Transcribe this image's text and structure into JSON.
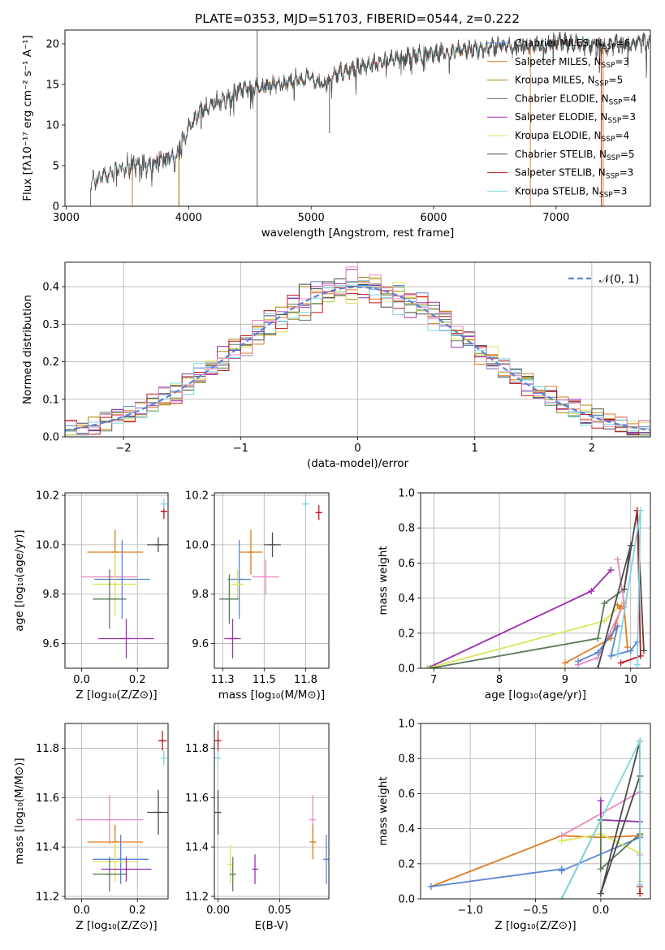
{
  "title": "PLATE=0353, MJD=51703, FIBERID=0544, z=0.222",
  "colors": {
    "chab_miles": "#5b84d6",
    "salp_miles": "#e07a1f",
    "krou_miles": "#a8860c",
    "chab_elodie": "#5a7d58",
    "salp_elodie": "#9b2fae",
    "krou_elodie": "#d9e65c",
    "chab_stelib": "#4a4a4a",
    "salp_stelib": "#c01818",
    "krou_stelib": "#7fd6e0",
    "pink": "#e68ac2",
    "gauss": "#5b84d6"
  },
  "legend_models": [
    {
      "key": "chab_miles",
      "label": "Chabrier MILES, N",
      "sub": "SSP",
      "val": "=6"
    },
    {
      "key": "salp_miles",
      "label": "Salpeter MILES, N",
      "sub": "SSP",
      "val": "=3"
    },
    {
      "key": "krou_miles",
      "label": "Kroupa MILES, N",
      "sub": "SSP",
      "val": "=5"
    },
    {
      "key": "chab_elodie",
      "label": "Chabrier ELODIE, N",
      "sub": "SSP",
      "val": "=4"
    },
    {
      "key": "salp_elodie",
      "label": "Salpeter ELODIE, N",
      "sub": "SSP",
      "val": "=3"
    },
    {
      "key": "krou_elodie",
      "label": "Kroupa ELODIE, N",
      "sub": "SSP",
      "val": "=4"
    },
    {
      "key": "chab_stelib",
      "label": "Chabrier STELIB, N",
      "sub": "SSP",
      "val": "=5"
    },
    {
      "key": "salp_stelib",
      "label": "Salpeter STELIB, N",
      "sub": "SSP",
      "val": "=3"
    },
    {
      "key": "krou_stelib",
      "label": "Kroupa STELIB, N",
      "sub": "SSP",
      "val": "=3"
    }
  ],
  "chart_data": [
    {
      "id": "spectrum",
      "type": "line",
      "xlabel": "wavelength [Angstrom, rest frame]",
      "ylabel": "Flux [fλ10⁻¹⁷ erg cm⁻² s⁻¹ A⁻¹]",
      "xlim": [
        2990,
        7770
      ],
      "ylim": [
        0,
        21.7
      ],
      "xticks": [
        3000,
        4000,
        5000,
        6000,
        7000
      ],
      "yticks": [
        0,
        5,
        10,
        15,
        20
      ],
      "continuum": {
        "x": [
          3200,
          3300,
          3400,
          3500,
          3600,
          3700,
          3800,
          3900,
          4000,
          4100,
          4200,
          4300,
          4400,
          4500,
          4600,
          4700,
          4800,
          4900,
          5000,
          5100,
          5200,
          5300,
          5400,
          5500,
          5600,
          5700,
          5800,
          5900,
          6000,
          6100,
          6200,
          6300,
          6400,
          6500,
          6600,
          6700,
          6800,
          6900,
          7000,
          7100,
          7200,
          7300,
          7400,
          7500,
          7600,
          7700,
          7770
        ],
        "y": [
          3.0,
          3.7,
          4.3,
          4.8,
          5.0,
          5.5,
          5.7,
          6.3,
          9.5,
          11.8,
          12.8,
          13.0,
          14.2,
          14.8,
          14.8,
          14.9,
          15.3,
          15.8,
          15.8,
          15.0,
          16.2,
          16.8,
          17.2,
          17.6,
          17.9,
          18.2,
          18.4,
          18.7,
          18.8,
          19.0,
          19.2,
          19.3,
          19.3,
          19.6,
          19.6,
          19.5,
          19.8,
          19.9,
          20.2,
          20.2,
          19.8,
          19.9,
          19.5,
          20.0,
          20.0,
          20.2,
          19.8
        ]
      },
      "model_starts": {
        "chab_miles": 3540,
        "salp_miles": 3540,
        "krou_miles": 3920,
        "chab_elodie": 3920,
        "salp_elodie": 3920,
        "krou_elodie": 3920,
        "chab_stelib": 3200,
        "salp_stelib": 3200,
        "krou_stelib": 3200
      },
      "model_ends": {
        "salp_miles": 6780,
        "krou_miles": 6780,
        "chab_miles": 7770,
        "salp_stelib": 7380,
        "krou_elodie": 7770
      }
    },
    {
      "id": "residuals",
      "type": "area",
      "xlabel": "(data-model)/error",
      "ylabel": "Normed distribution",
      "xlim": [
        -2.5,
        2.5
      ],
      "ylim": [
        0,
        0.465
      ],
      "xticks": [
        -2,
        -1,
        0,
        1,
        2
      ],
      "yticks": [
        0.0,
        0.1,
        0.2,
        0.3,
        0.4
      ],
      "bin_width": 0.1,
      "legend": "𝒩(0, 1)"
    },
    {
      "id": "age_vs_Z",
      "type": "scatter",
      "xlabel": "Z [log₁₀(Z/Z⊙)]",
      "ylabel": "age  [log₁₀(age/yr)]",
      "xlim": [
        -0.06,
        0.31
      ],
      "ylim": [
        9.5,
        10.21
      ],
      "xticks": [
        0.0,
        0.2
      ],
      "yticks": [
        9.6,
        9.8,
        10.0,
        10.2
      ],
      "points": [
        {
          "c": "pink",
          "x": 0.1,
          "y": 9.87,
          "xe": 0.1,
          "ye": 0.0
        },
        {
          "c": "chab_miles",
          "x": 0.145,
          "y": 9.86,
          "xe": 0.1,
          "ye": 0.16
        },
        {
          "c": "salp_miles",
          "x": 0.12,
          "y": 9.97,
          "xe": 0.1,
          "ye": 0.09
        },
        {
          "c": "krou_elodie",
          "x": 0.12,
          "y": 9.84,
          "xe": 0.08,
          "ye": 0.13
        },
        {
          "c": "chab_elodie",
          "x": 0.1,
          "y": 9.78,
          "xe": 0.06,
          "ye": 0.12
        },
        {
          "c": "salp_elodie",
          "x": 0.16,
          "y": 9.62,
          "xe": 0.1,
          "ye": 0.08
        },
        {
          "c": "chab_stelib",
          "x": 0.275,
          "y": 10.0,
          "xe": 0.04,
          "ye": 0.03
        },
        {
          "c": "salp_stelib",
          "x": 0.295,
          "y": 10.135,
          "xe": 0.012,
          "ye": 0.03
        },
        {
          "c": "krou_stelib",
          "x": 0.295,
          "y": 10.165,
          "xe": 0.005,
          "ye": 0.02
        }
      ]
    },
    {
      "id": "age_vs_mass",
      "type": "scatter",
      "xlabel": "mass [log₁₀(M/M⊙)]",
      "ylabel": "",
      "xlim": [
        11.2,
        11.89
      ],
      "ylim": [
        9.5,
        10.21
      ],
      "xticks": [
        11.25,
        11.5,
        11.75
      ],
      "yticks": [
        9.6,
        9.8,
        10.0,
        10.2
      ],
      "points": [
        {
          "c": "chab_miles",
          "x": 11.35,
          "y": 9.86,
          "xe": 0.07,
          "ye": 0.16
        },
        {
          "c": "salp_miles",
          "x": 11.42,
          "y": 9.97,
          "xe": 0.07,
          "ye": 0.09
        },
        {
          "c": "pink",
          "x": 11.51,
          "y": 9.87,
          "xe": 0.08,
          "ye": 0.07
        },
        {
          "c": "krou_elodie",
          "x": 11.34,
          "y": 9.84,
          "xe": 0.04,
          "ye": 0.06
        },
        {
          "c": "chab_elodie",
          "x": 11.29,
          "y": 9.78,
          "xe": 0.06,
          "ye": 0.1
        },
        {
          "c": "salp_elodie",
          "x": 11.31,
          "y": 9.62,
          "xe": 0.05,
          "ye": 0.08
        },
        {
          "c": "chab_stelib",
          "x": 11.55,
          "y": 10.0,
          "xe": 0.05,
          "ye": 0.05
        },
        {
          "c": "salp_stelib",
          "x": 11.83,
          "y": 10.13,
          "xe": 0.02,
          "ye": 0.03
        },
        {
          "c": "krou_stelib",
          "x": 11.75,
          "y": 10.165,
          "xe": 0.02,
          "ye": 0.02
        }
      ]
    },
    {
      "id": "massweight_vs_age",
      "type": "line",
      "xlabel": "age  [log₁₀(age/yr)]",
      "ylabel": "mass weight",
      "xlim": [
        6.8,
        10.3
      ],
      "ylim": [
        0,
        1.0
      ],
      "xticks": [
        7,
        8,
        9,
        10
      ],
      "yticks": [
        0.0,
        0.2,
        0.4,
        0.6,
        0.8,
        1.0
      ],
      "series": [
        {
          "c": "salp_elodie",
          "x": [
            9.7,
            9.4,
            6.9
          ],
          "y": [
            0.56,
            0.44,
            0.0
          ]
        },
        {
          "c": "krou_elodie",
          "x": [
            9.9,
            9.6,
            6.9
          ],
          "y": [
            0.38,
            0.27,
            0.0
          ]
        },
        {
          "c": "chab_elodie",
          "x": [
            9.9,
            9.6,
            9.5,
            6.95
          ],
          "y": [
            0.45,
            0.37,
            0.17,
            0.0
          ]
        },
        {
          "c": "salp_miles",
          "x": [
            9.0,
            9.7,
            9.85,
            9.8,
            9.9,
            9.95
          ],
          "y": [
            0.03,
            0.17,
            0.34,
            0.36,
            0.35,
            0.12
          ]
        },
        {
          "c": "pink",
          "x": [
            9.8,
            9.9,
            9.5,
            9.2
          ],
          "y": [
            0.62,
            0.37,
            0.06,
            0.02
          ]
        },
        {
          "c": "chab_miles",
          "x": [
            9.2,
            9.5,
            9.8,
            9.7,
            10.0,
            10.1
          ],
          "y": [
            0.04,
            0.09,
            0.24,
            0.07,
            0.1,
            0.15
          ]
        },
        {
          "c": "chab_stelib",
          "x": [
            9.5,
            10.0,
            9.9,
            10.1,
            10.2
          ],
          "y": [
            0.0,
            0.7,
            0.45,
            0.9,
            0.1
          ]
        },
        {
          "c": "salp_stelib",
          "x": [
            10.1,
            10.15,
            9.85
          ],
          "y": [
            0.9,
            0.07,
            0.03
          ]
        },
        {
          "c": "krou_stelib",
          "x": [
            9.8,
            10.15,
            10.1
          ],
          "y": [
            0.08,
            0.9,
            0.02
          ]
        }
      ]
    },
    {
      "id": "mass_vs_Z",
      "type": "scatter",
      "xlabel": "Z [log₁₀(Z/Z⊙)]",
      "ylabel": "mass [log₁₀(M/M⊙)]",
      "xlim": [
        -0.06,
        0.31
      ],
      "ylim": [
        11.19,
        11.9
      ],
      "xticks": [
        0.0,
        0.2
      ],
      "yticks": [
        11.2,
        11.4,
        11.6,
        11.8
      ],
      "points": [
        {
          "c": "pink",
          "x": 0.1,
          "y": 11.51,
          "xe": 0.12,
          "ye": 0.1
        },
        {
          "c": "salp_miles",
          "x": 0.12,
          "y": 11.42,
          "xe": 0.1,
          "ye": 0.07
        },
        {
          "c": "chab_miles",
          "x": 0.14,
          "y": 11.35,
          "xe": 0.1,
          "ye": 0.1
        },
        {
          "c": "krou_elodie",
          "x": 0.12,
          "y": 11.34,
          "xe": 0.08,
          "ye": 0.08
        },
        {
          "c": "chab_elodie",
          "x": 0.1,
          "y": 11.29,
          "xe": 0.06,
          "ye": 0.07
        },
        {
          "c": "salp_elodie",
          "x": 0.16,
          "y": 11.31,
          "xe": 0.09,
          "ye": 0.05
        },
        {
          "c": "chab_stelib",
          "x": 0.275,
          "y": 11.54,
          "xe": 0.04,
          "ye": 0.09
        },
        {
          "c": "salp_stelib",
          "x": 0.29,
          "y": 11.83,
          "xe": 0.015,
          "ye": 0.04
        },
        {
          "c": "krou_stelib",
          "x": 0.295,
          "y": 11.76,
          "xe": 0.005,
          "ye": 0.03
        }
      ]
    },
    {
      "id": "mass_vs_EBV",
      "type": "scatter",
      "xlabel": "E(B-V)",
      "ylabel": "",
      "xlim": [
        -0.003,
        0.09
      ],
      "ylim": [
        11.19,
        11.9
      ],
      "xticks": [
        0.0,
        0.05
      ],
      "yticks": [
        11.2,
        11.4,
        11.6,
        11.8
      ],
      "points": [
        {
          "c": "salp_stelib",
          "x": 0.0,
          "y": 11.83,
          "xe": 0.0,
          "ye": 0.04
        },
        {
          "c": "krou_stelib",
          "x": 0.0,
          "y": 11.76,
          "xe": 0.0,
          "ye": 0.03
        },
        {
          "c": "chab_stelib",
          "x": 0.0,
          "y": 11.54,
          "xe": 0.0,
          "ye": 0.09
        },
        {
          "c": "pink",
          "x": 0.077,
          "y": 11.51,
          "xe": 0.0,
          "ye": 0.1
        },
        {
          "c": "salp_miles",
          "x": 0.077,
          "y": 11.42,
          "xe": 0.0,
          "ye": 0.07
        },
        {
          "c": "chab_miles",
          "x": 0.088,
          "y": 11.35,
          "xe": 0.0,
          "ye": 0.1
        },
        {
          "c": "krou_elodie",
          "x": 0.01,
          "y": 11.33,
          "xe": 0.0,
          "ye": 0.08
        },
        {
          "c": "chab_elodie",
          "x": 0.012,
          "y": 11.29,
          "xe": 0.0,
          "ye": 0.07
        },
        {
          "c": "salp_elodie",
          "x": 0.03,
          "y": 11.31,
          "xe": 0.0,
          "ye": 0.06
        }
      ]
    },
    {
      "id": "massweight_vs_Z",
      "type": "line",
      "xlabel": "Z [log₁₀(Z/Z⊙)]",
      "ylabel": "mass weight",
      "xlim": [
        -1.38,
        0.38
      ],
      "ylim": [
        0,
        1.0
      ],
      "xticks": [
        -1.0,
        -0.5,
        0.0
      ],
      "yticks": [
        0.0,
        0.2,
        0.4,
        0.6,
        0.8,
        1.0
      ],
      "series": [
        {
          "c": "salp_miles",
          "x": [
            -1.3,
            -0.3,
            0.0,
            0.3
          ],
          "y": [
            0.07,
            0.36,
            0.35,
            0.36
          ]
        },
        {
          "c": "chab_miles",
          "x": [
            -1.3,
            -0.3,
            -0.3,
            0.3
          ],
          "y": [
            0.07,
            0.17,
            0.16,
            0.35
          ]
        },
        {
          "c": "pink",
          "x": [
            -0.3,
            0.3,
            0.3
          ],
          "y": [
            0.36,
            0.61,
            0.25
          ]
        },
        {
          "c": "krou_elodie",
          "x": [
            -0.3,
            0.0,
            0.3,
            0.3
          ],
          "y": [
            0.33,
            0.37,
            0.26,
            0.1
          ]
        },
        {
          "c": "salp_elodie",
          "x": [
            0.0,
            0.0,
            0.3
          ],
          "y": [
            0.56,
            0.45,
            0.44
          ]
        },
        {
          "c": "chab_elodie",
          "x": [
            -0.3,
            0.0,
            0.0,
            0.3
          ],
          "y": [
            0.0,
            0.45,
            0.17,
            0.37
          ]
        },
        {
          "c": "chab_stelib",
          "x": [
            0.0,
            0.3,
            0.3,
            0.0
          ],
          "y": [
            0.03,
            0.7,
            0.9,
            0.03
          ]
        },
        {
          "c": "salp_stelib",
          "x": [
            0.3,
            0.3,
            0.3
          ],
          "y": [
            0.9,
            0.07,
            0.03
          ]
        },
        {
          "c": "krou_stelib",
          "x": [
            -0.3,
            0.3,
            0.3
          ],
          "y": [
            0.0,
            0.9,
            0.08
          ]
        }
      ]
    }
  ]
}
